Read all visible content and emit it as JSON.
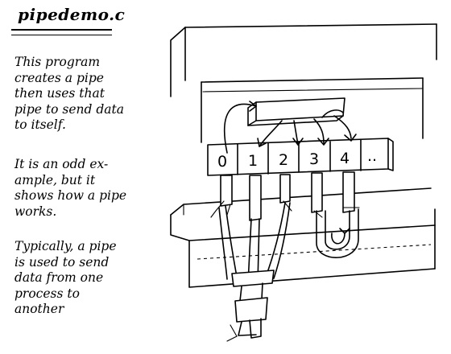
{
  "title": "pipedemo.c",
  "paragraphs": [
    {
      "lines": [
        "This program",
        "creates a pipe",
        "then uses that",
        "pipe to send data",
        "to itself."
      ]
    },
    {
      "lines": [
        "It is an odd ex-",
        "ample, but it",
        "shows how a pipe",
        "works."
      ]
    },
    {
      "lines": [
        "Typically, a pipe",
        "is used to send",
        "data from one",
        "process to",
        "another"
      ]
    }
  ],
  "diagram": {
    "fd_slots": [
      "0",
      "1",
      "2",
      "3",
      "4",
      ".."
    ]
  }
}
